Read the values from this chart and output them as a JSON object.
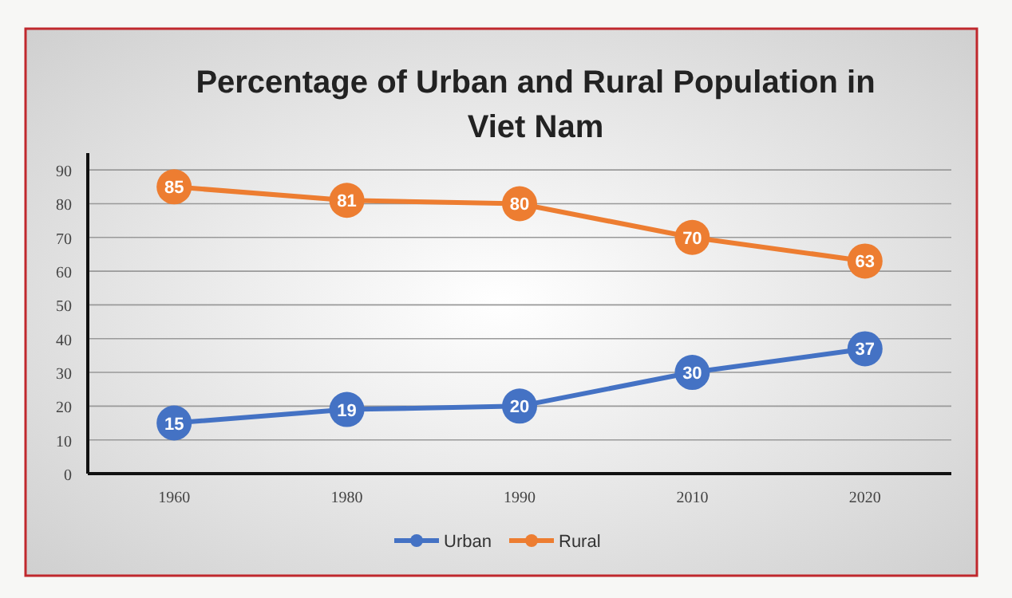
{
  "chart_data": {
    "type": "line",
    "title": "Percentage of Urban and Rural Population in Viet Nam",
    "categories": [
      "1960",
      "1980",
      "1990",
      "2010",
      "2020"
    ],
    "series": [
      {
        "name": "Urban",
        "color": "#4472c4",
        "values": [
          15,
          19,
          20,
          30,
          37
        ]
      },
      {
        "name": "Rural",
        "color": "#ed7d31",
        "values": [
          85,
          81,
          80,
          70,
          63
        ]
      }
    ],
    "ylim": [
      0,
      95
    ],
    "yticks": [
      0,
      10,
      20,
      30,
      40,
      50,
      60,
      70,
      80,
      90
    ],
    "grid": "y",
    "legend": "bottom",
    "marker": "circle",
    "data_labels": true
  }
}
